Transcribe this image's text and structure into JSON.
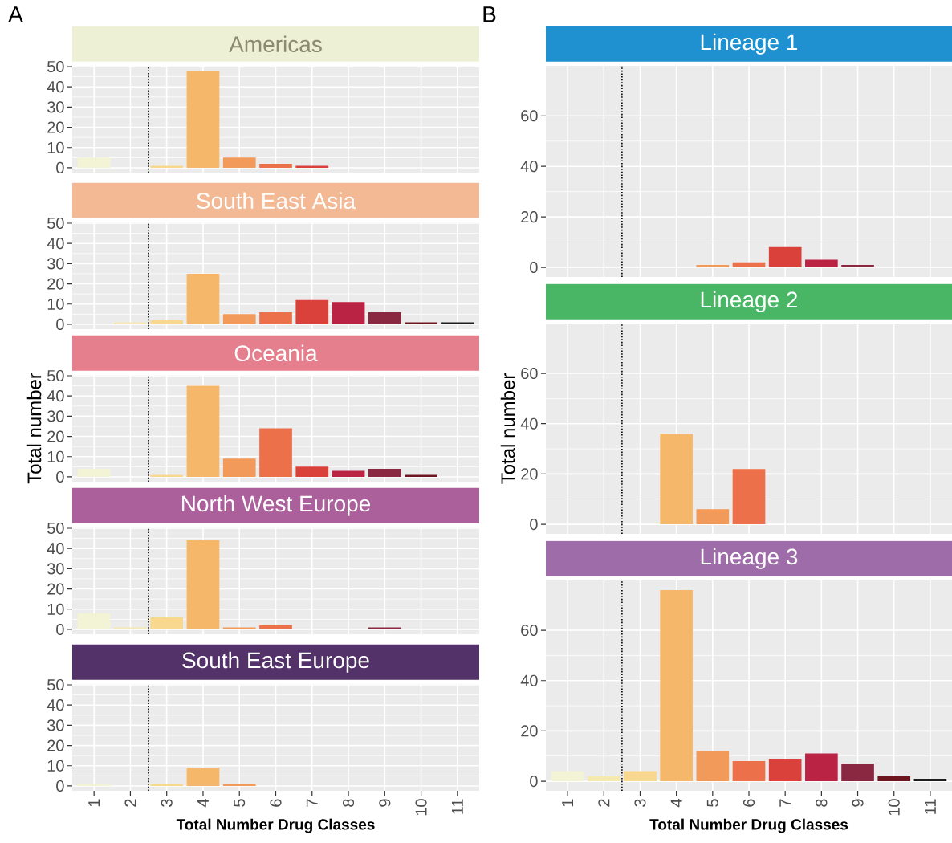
{
  "chart_data": [
    {
      "type": "bar",
      "title": "Americas",
      "annotations": [
        "A"
      ],
      "x": [
        1,
        2,
        3,
        4,
        5,
        6,
        7,
        8,
        9,
        10,
        11
      ],
      "xlim": [
        0.4,
        11.6
      ],
      "xticks": [
        1,
        2,
        3,
        4,
        5,
        6,
        7,
        8,
        9,
        10,
        11
      ],
      "values": [
        5,
        0,
        1,
        48,
        5,
        2,
        1,
        0,
        0,
        0,
        0
      ],
      "colors": [
        "#f3f3d6",
        "#f6e9b0",
        "#f8d78f",
        "#f5b76a",
        "#f29a5a",
        "#ec7049",
        "#da413b",
        "#bb2345",
        "#8a2841",
        "#6e1620",
        "#1d1d1d"
      ],
      "ylim": [
        -2.4,
        50.4
      ],
      "yticks": [
        0,
        10,
        20,
        30,
        40,
        50
      ],
      "grid": true,
      "tick_labels": "y",
      "ref_lines": [
        {
          "axis": "x",
          "value": 2.5,
          "line_style": "dotted"
        }
      ]
    },
    {
      "type": "bar",
      "title": "South East Asia",
      "x": [
        1,
        2,
        3,
        4,
        5,
        6,
        7,
        8,
        9,
        10,
        11
      ],
      "xlim": [
        0.4,
        11.6
      ],
      "xticks": [
        1,
        2,
        3,
        4,
        5,
        6,
        7,
        8,
        9,
        10,
        11
      ],
      "values": [
        0,
        1,
        2,
        25,
        5,
        6,
        12,
        11,
        6,
        1,
        1
      ],
      "colors": [
        "#f3f3d6",
        "#f6e9b0",
        "#f8d78f",
        "#f5b76a",
        "#f29a5a",
        "#ec7049",
        "#da413b",
        "#bb2345",
        "#8a2841",
        "#6e1620",
        "#1d1d1d"
      ],
      "ylim": [
        -2.4,
        50.4
      ],
      "yticks": [
        0,
        10,
        20,
        30,
        40,
        50
      ],
      "grid": true,
      "tick_labels": "y",
      "ref_lines": [
        {
          "axis": "x",
          "value": 2.5,
          "line_style": "dotted"
        }
      ]
    },
    {
      "type": "bar",
      "title": "Oceania",
      "ylabel": "Total number",
      "x": [
        1,
        2,
        3,
        4,
        5,
        6,
        7,
        8,
        9,
        10,
        11
      ],
      "xlim": [
        0.4,
        11.6
      ],
      "xticks": [
        1,
        2,
        3,
        4,
        5,
        6,
        7,
        8,
        9,
        10,
        11
      ],
      "values": [
        4,
        0,
        1,
        45,
        9,
        24,
        5,
        3,
        4,
        1,
        0
      ],
      "colors": [
        "#f3f3d6",
        "#f6e9b0",
        "#f8d78f",
        "#f5b76a",
        "#f29a5a",
        "#ec7049",
        "#da413b",
        "#bb2345",
        "#8a2841",
        "#6e1620",
        "#1d1d1d"
      ],
      "ylim": [
        -2.4,
        50.4
      ],
      "yticks": [
        0,
        10,
        20,
        30,
        40,
        50
      ],
      "grid": true,
      "tick_labels": "y",
      "ref_lines": [
        {
          "axis": "x",
          "value": 2.5,
          "line_style": "dotted"
        }
      ]
    },
    {
      "type": "bar",
      "title": "North West Europe",
      "x": [
        1,
        2,
        3,
        4,
        5,
        6,
        7,
        8,
        9,
        10,
        11
      ],
      "xlim": [
        0.4,
        11.6
      ],
      "xticks": [
        1,
        2,
        3,
        4,
        5,
        6,
        7,
        8,
        9,
        10,
        11
      ],
      "values": [
        8,
        1,
        6,
        44,
        1,
        2,
        0,
        0,
        1,
        0,
        0
      ],
      "colors": [
        "#f3f3d6",
        "#f6e9b0",
        "#f8d78f",
        "#f5b76a",
        "#f29a5a",
        "#ec7049",
        "#da413b",
        "#bb2345",
        "#8a2841",
        "#6e1620",
        "#1d1d1d"
      ],
      "ylim": [
        -2.4,
        50.4
      ],
      "yticks": [
        0,
        10,
        20,
        30,
        40,
        50
      ],
      "grid": true,
      "tick_labels": "y",
      "ref_lines": [
        {
          "axis": "x",
          "value": 2.5,
          "line_style": "dotted"
        }
      ]
    },
    {
      "type": "bar",
      "title": "South East Europe",
      "xlabel": "Total Number Drug Classes",
      "x": [
        1,
        2,
        3,
        4,
        5,
        6,
        7,
        8,
        9,
        10,
        11
      ],
      "xlim": [
        0.4,
        11.6
      ],
      "xticks": [
        1,
        2,
        3,
        4,
        5,
        6,
        7,
        8,
        9,
        10,
        11
      ],
      "values": [
        1,
        0,
        1,
        9,
        1,
        0,
        0,
        0,
        0,
        0,
        0
      ],
      "colors": [
        "#f3f3d6",
        "#f6e9b0",
        "#f8d78f",
        "#f5b76a",
        "#f29a5a",
        "#ec7049",
        "#da413b",
        "#bb2345",
        "#8a2841",
        "#6e1620",
        "#1d1d1d"
      ],
      "ylim": [
        -2.4,
        50.4
      ],
      "yticks": [
        0,
        10,
        20,
        30,
        40,
        50
      ],
      "grid": true,
      "ref_lines": [
        {
          "axis": "x",
          "value": 2.5,
          "line_style": "dotted"
        }
      ]
    },
    {
      "type": "bar",
      "title": "Lineage 1",
      "annotations": [
        "B"
      ],
      "x": [
        1,
        2,
        3,
        4,
        5,
        6,
        7,
        8,
        9,
        10,
        11
      ],
      "xlim": [
        0.4,
        11.6
      ],
      "xticks": [
        1,
        2,
        3,
        4,
        5,
        6,
        7,
        8,
        9,
        10,
        11
      ],
      "values": [
        0,
        0,
        0,
        0,
        1,
        2,
        8,
        3,
        1,
        0,
        0
      ],
      "colors": [
        "#f3f3d6",
        "#f6e9b0",
        "#f8d78f",
        "#f5b76a",
        "#f29a5a",
        "#ec7049",
        "#da413b",
        "#bb2345",
        "#8a2841",
        "#6e1620",
        "#1d1d1d"
      ],
      "ylim": [
        -3.8,
        79.8
      ],
      "yticks": [
        0,
        20,
        40,
        60
      ],
      "grid": true,
      "tick_labels": "y",
      "ref_lines": [
        {
          "axis": "x",
          "value": 2.5,
          "line_style": "dotted"
        }
      ]
    },
    {
      "type": "bar",
      "title": "Lineage 2",
      "ylabel": "Total number",
      "x": [
        1,
        2,
        3,
        4,
        5,
        6,
        7,
        8,
        9,
        10,
        11
      ],
      "xlim": [
        0.4,
        11.6
      ],
      "xticks": [
        1,
        2,
        3,
        4,
        5,
        6,
        7,
        8,
        9,
        10,
        11
      ],
      "values": [
        0,
        0,
        0,
        36,
        6,
        22,
        0,
        0,
        0,
        0,
        0
      ],
      "colors": [
        "#f3f3d6",
        "#f6e9b0",
        "#f8d78f",
        "#f5b76a",
        "#f29a5a",
        "#ec7049",
        "#da413b",
        "#bb2345",
        "#8a2841",
        "#6e1620",
        "#1d1d1d"
      ],
      "ylim": [
        -3.8,
        79.8
      ],
      "yticks": [
        0,
        20,
        40,
        60
      ],
      "grid": true,
      "tick_labels": "y",
      "ref_lines": [
        {
          "axis": "x",
          "value": 2.5,
          "line_style": "dotted"
        }
      ]
    },
    {
      "type": "bar",
      "title": "Lineage 3",
      "xlabel": "Total Number Drug Classes",
      "x": [
        1,
        2,
        3,
        4,
        5,
        6,
        7,
        8,
        9,
        10,
        11
      ],
      "xlim": [
        0.4,
        11.6
      ],
      "xticks": [
        1,
        2,
        3,
        4,
        5,
        6,
        7,
        8,
        9,
        10,
        11
      ],
      "values": [
        4,
        2,
        4,
        76,
        12,
        8,
        9,
        11,
        7,
        2,
        1
      ],
      "colors": [
        "#f3f3d6",
        "#f6e9b0",
        "#f8d78f",
        "#f5b76a",
        "#f29a5a",
        "#ec7049",
        "#da413b",
        "#bb2345",
        "#8a2841",
        "#6e1620",
        "#1d1d1d"
      ],
      "ylim": [
        -3.8,
        79.8
      ],
      "yticks": [
        0,
        20,
        40,
        60
      ],
      "grid": true,
      "ref_lines": [
        {
          "axis": "x",
          "value": 2.5,
          "line_style": "dotted"
        }
      ]
    }
  ]
}
